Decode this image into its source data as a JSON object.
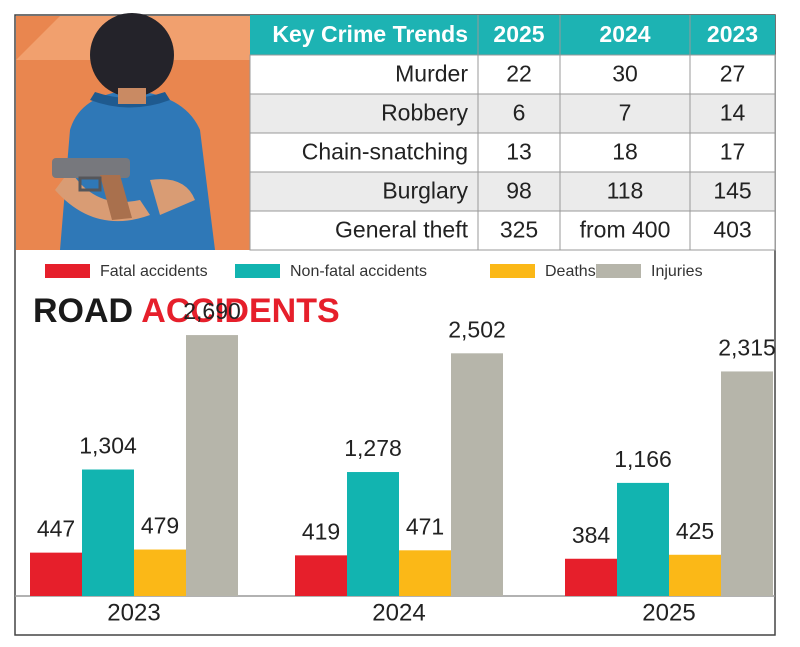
{
  "table": {
    "header": [
      "Key Crime Trends",
      "2025",
      "2024",
      "2023"
    ],
    "rows": [
      [
        "Murder",
        22,
        30,
        27
      ],
      [
        "Robbery",
        6,
        7,
        14
      ],
      [
        "Chain-snatching",
        13,
        18,
        17
      ],
      [
        "Burglary",
        98,
        118,
        145
      ],
      [
        "General theft",
        325,
        "from 400",
        403
      ]
    ]
  },
  "chart_data": {
    "type": "bar",
    "title": "ROAD ACCIDENTS",
    "categories": [
      "2023",
      "2024",
      "2025"
    ],
    "series": [
      {
        "name": "Fatal accidents",
        "color": "#e61f2b",
        "values": [
          447,
          419,
          384
        ]
      },
      {
        "name": "Non-fatal accidents",
        "color": "#12b4b0",
        "values": [
          1304,
          1278,
          1166
        ],
        "value_labels": [
          "1,304",
          "1,278",
          "1,166"
        ]
      },
      {
        "name": "Deaths",
        "color": "#fbb817",
        "values": [
          479,
          471,
          425
        ]
      },
      {
        "name": "Injuries",
        "color": "#b6b5aa",
        "values": [
          2690,
          2502,
          2315
        ],
        "value_labels": [
          "2,690",
          "2,502",
          "2,315"
        ]
      }
    ]
  }
}
